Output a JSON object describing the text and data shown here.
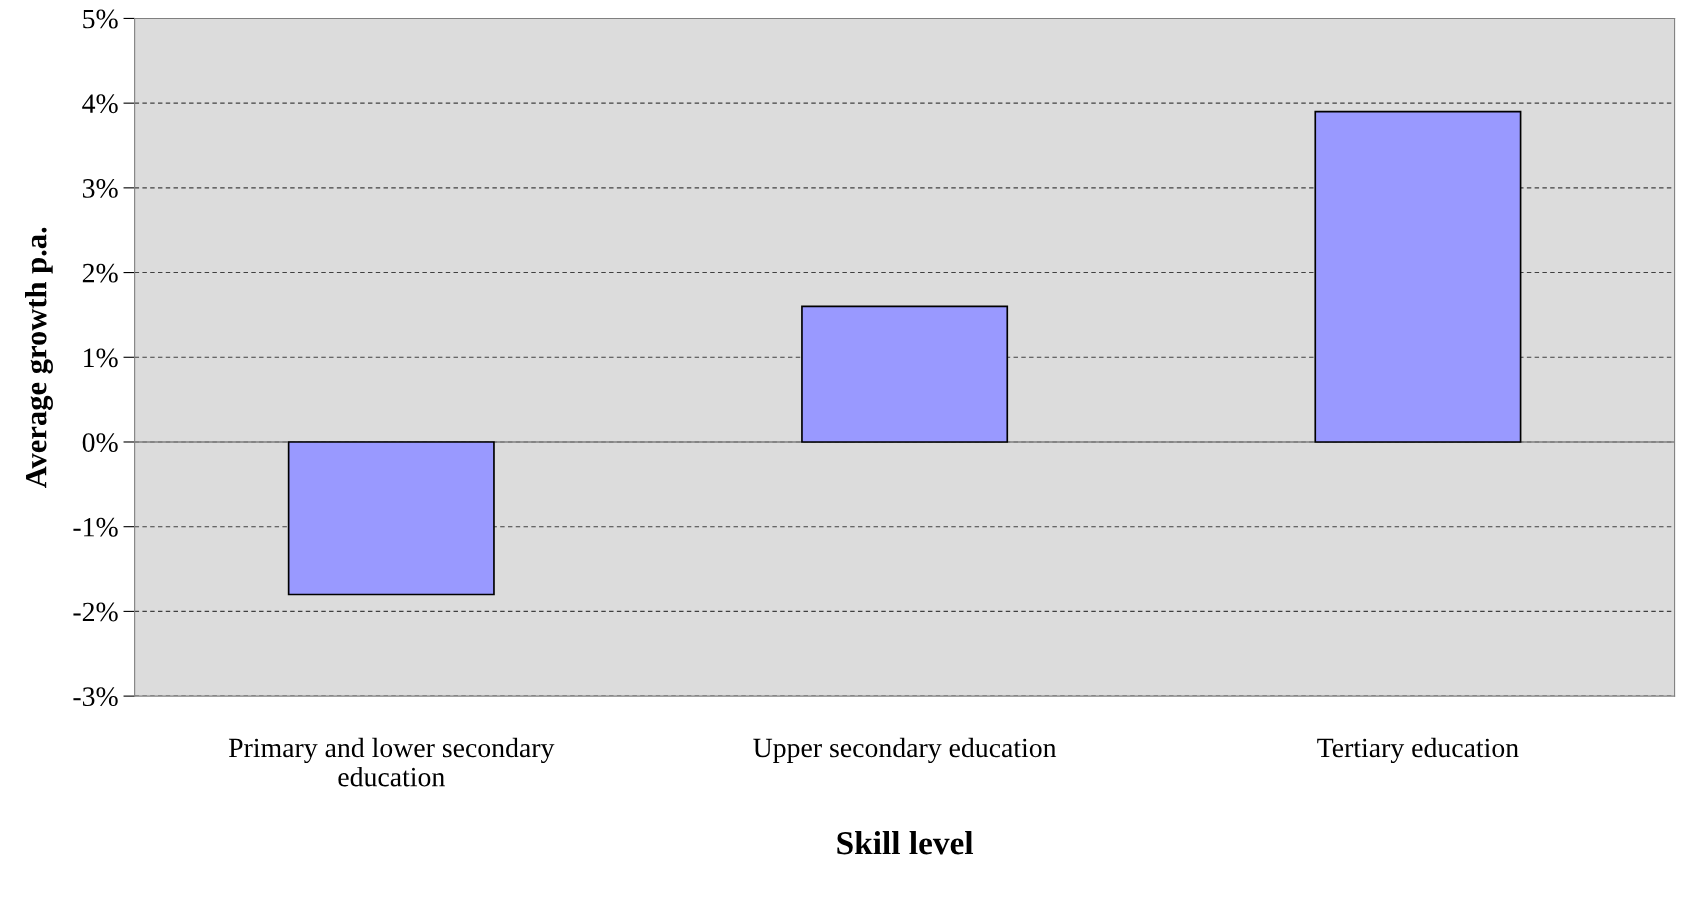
{
  "chart_data": {
    "type": "bar",
    "xlabel": "Skill level",
    "ylabel": "Average growth p.a.",
    "categories": [
      "Primary and lower secondary\neducation",
      "Upper secondary education",
      "Tertiary education"
    ],
    "values": [
      -1.8,
      1.6,
      3.9
    ],
    "color": "#9999ff",
    "ylim": [
      -3,
      5
    ],
    "yticks": [
      {
        "value": -3,
        "label": "-3%"
      },
      {
        "value": -2,
        "label": "-2%"
      },
      {
        "value": -1,
        "label": "-1%"
      },
      {
        "value": 0,
        "label": "0%"
      },
      {
        "value": 1,
        "label": "1%"
      },
      {
        "value": 2,
        "label": "2%"
      },
      {
        "value": 3,
        "label": "3%"
      },
      {
        "value": 4,
        "label": "4%"
      },
      {
        "value": 5,
        "label": "5%"
      }
    ],
    "ref_lines": [
      {
        "axis": "y",
        "value": 0,
        "color": "#808080"
      }
    ],
    "grid": "y"
  }
}
